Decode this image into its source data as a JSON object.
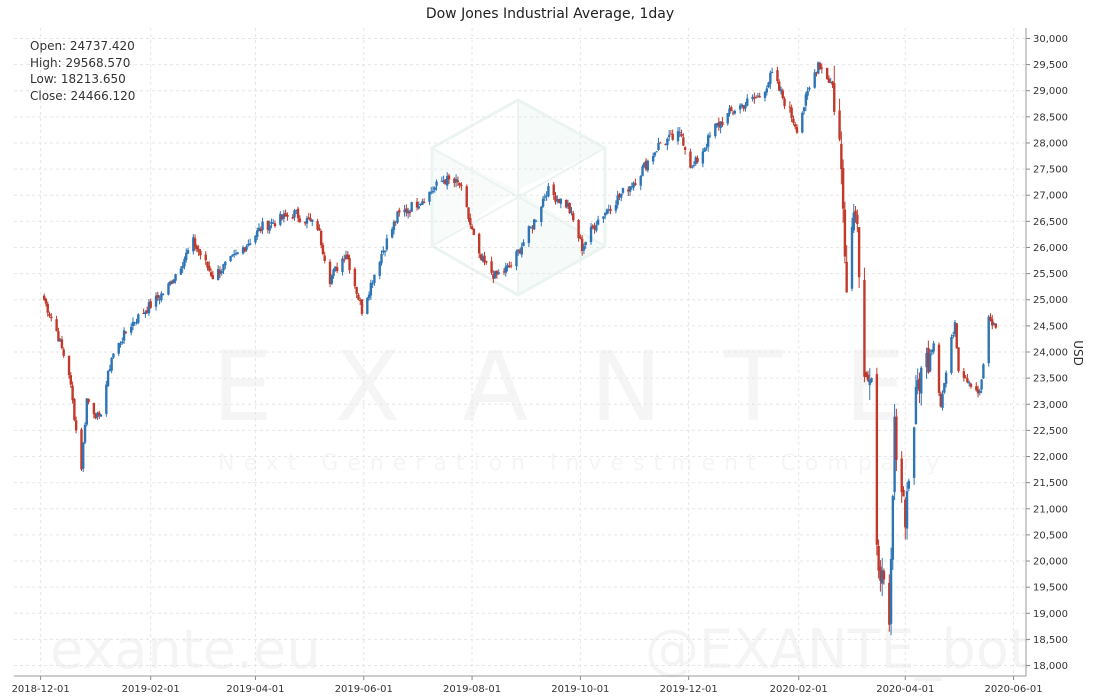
{
  "chart_data": {
    "type": "candlestick",
    "title": "Dow Jones Industrial Average, 1day",
    "ylabel": "USD",
    "xlabel": "",
    "ylim": [
      17800,
      30200
    ],
    "y_ticks": [
      18000,
      18500,
      19000,
      19500,
      20000,
      20500,
      21000,
      21500,
      22000,
      22500,
      23000,
      23500,
      24000,
      24500,
      25000,
      25500,
      26000,
      26500,
      27000,
      27500,
      28000,
      28500,
      29000,
      29500,
      30000
    ],
    "y_tick_labels": [
      "18,000",
      "18,500",
      "19,000",
      "19,500",
      "20,000",
      "20,500",
      "21,000",
      "21,500",
      "22,000",
      "22,500",
      "23,000",
      "23,500",
      "24,000",
      "24,500",
      "25,000",
      "25,500",
      "26,000",
      "26,500",
      "27,000",
      "27,500",
      "28,000",
      "28,500",
      "29,000",
      "29,500",
      "30,000"
    ],
    "x_ticks": [
      "2018-12-01",
      "2019-02-01",
      "2019-04-01",
      "2019-06-01",
      "2019-08-01",
      "2019-10-01",
      "2019-12-01",
      "2020-02-01",
      "2020-04-01",
      "2020-06-01"
    ],
    "x_range": [
      "2018-11-16",
      "2020-06-08"
    ],
    "grid": true,
    "colors": {
      "up": "#2e75b6",
      "down": "#c0392b"
    },
    "key_points": [
      [
        "2018-12-03",
        25000
      ],
      [
        "2018-12-10",
        24400
      ],
      [
        "2018-12-17",
        23600
      ],
      [
        "2018-12-21",
        22500
      ],
      [
        "2018-12-24",
        21800
      ],
      [
        "2018-12-27",
        23100
      ],
      [
        "2019-01-03",
        22700
      ],
      [
        "2019-01-10",
        23900
      ],
      [
        "2019-01-20",
        24500
      ],
      [
        "2019-02-10",
        25200
      ],
      [
        "2019-02-25",
        26100
      ],
      [
        "2019-03-08",
        25450
      ],
      [
        "2019-03-20",
        25800
      ],
      [
        "2019-04-05",
        26400
      ],
      [
        "2019-04-23",
        26650
      ],
      [
        "2019-05-06",
        26400
      ],
      [
        "2019-05-13",
        25400
      ],
      [
        "2019-05-22",
        25900
      ],
      [
        "2019-05-31",
        24800
      ],
      [
        "2019-06-10",
        25800
      ],
      [
        "2019-06-20",
        26600
      ],
      [
        "2019-07-05",
        26950
      ],
      [
        "2019-07-16",
        27300
      ],
      [
        "2019-07-25",
        27200
      ],
      [
        "2019-08-05",
        25800
      ],
      [
        "2019-08-14",
        25450
      ],
      [
        "2019-08-23",
        25650
      ],
      [
        "2019-09-05",
        26500
      ],
      [
        "2019-09-12",
        27100
      ],
      [
        "2019-09-24",
        26800
      ],
      [
        "2019-10-02",
        26000
      ],
      [
        "2019-10-10",
        26500
      ],
      [
        "2019-10-18",
        26800
      ],
      [
        "2019-11-01",
        27300
      ],
      [
        "2019-11-15",
        28000
      ],
      [
        "2019-11-27",
        28150
      ],
      [
        "2019-12-03",
        27500
      ],
      [
        "2019-12-16",
        28300
      ],
      [
        "2019-12-27",
        28650
      ],
      [
        "2020-01-10",
        28900
      ],
      [
        "2020-01-17",
        29300
      ],
      [
        "2020-01-31",
        28300
      ],
      [
        "2020-02-12",
        29550
      ],
      [
        "2020-02-20",
        29100
      ],
      [
        "2020-02-24",
        28000
      ],
      [
        "2020-02-28",
        25500
      ],
      [
        "2020-03-04",
        27000
      ],
      [
        "2020-03-09",
        23800
      ],
      [
        "2020-03-13",
        23200
      ],
      [
        "2020-03-16",
        20100
      ],
      [
        "2020-03-18",
        19900
      ],
      [
        "2020-03-23",
        18600
      ],
      [
        "2020-03-26",
        22500
      ],
      [
        "2020-04-01",
        20900
      ],
      [
        "2020-04-08",
        23400
      ],
      [
        "2020-04-17",
        24200
      ],
      [
        "2020-04-21",
        23000
      ],
      [
        "2020-04-29",
        24600
      ],
      [
        "2020-05-01",
        23700
      ],
      [
        "2020-05-13",
        23200
      ],
      [
        "2020-05-18",
        24600
      ],
      [
        "2020-05-22",
        24466
      ]
    ]
  },
  "stats": {
    "open": "Open: 24737.420",
    "high": "High: 29568.570",
    "low": "Low: 18213.650",
    "close": "Close: 24466.120"
  },
  "watermark": {
    "brand": "EXANTE",
    "tagline": "Next Generation Investment Company",
    "site": "exante.eu",
    "bot": "@EXANTE_bot"
  }
}
